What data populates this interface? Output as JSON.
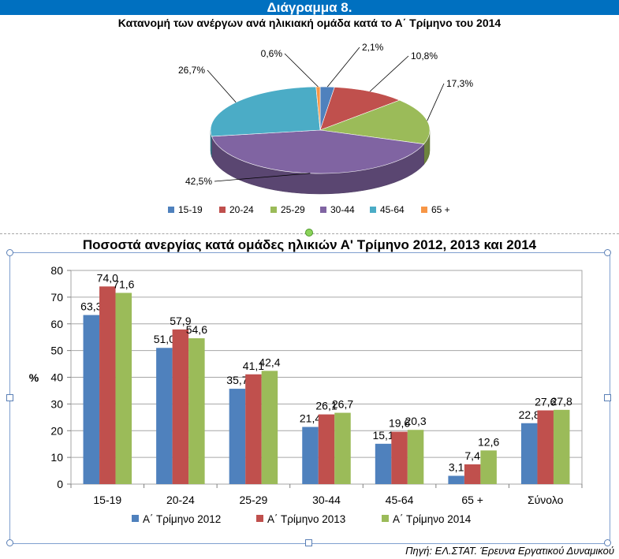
{
  "header": {
    "title": "Διάγραμμα 8."
  },
  "pie_title": "Κατανομή των ανέργων ανά ηλικιακή ομάδα κατά το Α΄ Τρίμηνο του 2014",
  "bar_title": "Ποσοστά ανεργίας κατά ομάδες ηλικιών Α' Τρίμηνο 2012, 2013 και 2014",
  "source": "Πηγή: ΕΛ.ΣΤΑΤ. Έρευνα Εργατικού Δυναμικού",
  "chart_data": [
    {
      "type": "pie",
      "title": "Κατανομή των ανέργων ανά ηλικιακή ομάδα κατά το Α΄ Τρίμηνο του 2014",
      "categories": [
        "15-19",
        "20-24",
        "25-29",
        "30-44",
        "45-64",
        "65 +"
      ],
      "values": [
        2.1,
        10.8,
        17.3,
        42.5,
        26.7,
        0.6
      ],
      "labels": [
        "2,1%",
        "10,8%",
        "17,3%",
        "42,5%",
        "26,7%",
        "0,6%"
      ],
      "colors": [
        "#4f81bd",
        "#c0504d",
        "#9bbb59",
        "#8064a2",
        "#4bacc6",
        "#f79646"
      ],
      "legend": "bottom"
    },
    {
      "type": "bar",
      "title": "Ποσοστά ανεργίας κατά ομάδες ηλικιών Α' Τρίμηνο 2012, 2013 και 2014",
      "categories": [
        "15-19",
        "20-24",
        "25-29",
        "30-44",
        "45-64",
        "65 +",
        "Σύνολο"
      ],
      "series": [
        {
          "name": "Α΄ Τρίμηνο 2012",
          "values": [
            63.3,
            51.0,
            35.7,
            21.4,
            15.1,
            3.1,
            22.8
          ],
          "labels": [
            "63,3",
            "51,0",
            "35,7",
            "21,4",
            "15,1",
            "3,1",
            "22,8"
          ],
          "color": "#4f81bd"
        },
        {
          "name": "Α΄ Τρίμηνο 2013",
          "values": [
            74.0,
            57.9,
            41.1,
            26.1,
            19.6,
            7.4,
            27.6
          ],
          "labels": [
            "74,0",
            "57,9",
            "41,1",
            "26,1",
            "19,6",
            "7,4",
            "27,6"
          ],
          "color": "#c0504d"
        },
        {
          "name": "Α΄ Τρίμηνο 2014",
          "values": [
            71.6,
            54.6,
            42.4,
            26.7,
            20.3,
            12.6,
            27.8
          ],
          "labels": [
            "71,6",
            "54,6",
            "42,4",
            "26,7",
            "20,3",
            "12,6",
            "27,8"
          ],
          "color": "#9bbb59"
        }
      ],
      "ylabel": "%",
      "ylim": [
        0,
        80
      ],
      "yticks": [
        "0",
        "10",
        "20",
        "30",
        "40",
        "50",
        "60",
        "70",
        "80"
      ],
      "grid": true,
      "legend": "bottom"
    }
  ]
}
